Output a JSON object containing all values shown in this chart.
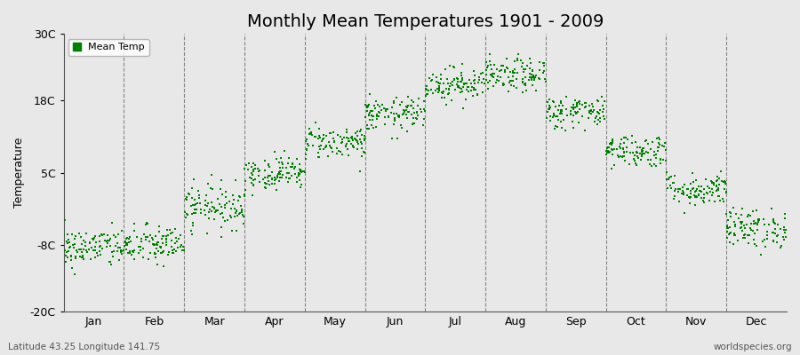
{
  "title": "Monthly Mean Temperatures 1901 - 2009",
  "ylabel": "Temperature",
  "xlabel_left": "Latitude 43.25 Longitude 141.75",
  "xlabel_right": "worldspecies.org",
  "ylim": [
    -20,
    30
  ],
  "yticks": [
    -20,
    -8,
    5,
    18,
    30
  ],
  "ytick_labels": [
    "-20C",
    "-8C",
    "5C",
    "18C",
    "30C"
  ],
  "months": [
    "Jan",
    "Feb",
    "Mar",
    "Apr",
    "May",
    "Jun",
    "Jul",
    "Aug",
    "Sep",
    "Oct",
    "Nov",
    "Dec"
  ],
  "month_means": [
    -8.5,
    -8.0,
    -1.0,
    5.0,
    10.5,
    15.5,
    21.0,
    22.5,
    16.0,
    9.0,
    2.0,
    -5.0
  ],
  "month_stds": [
    1.8,
    1.8,
    2.0,
    1.5,
    1.5,
    1.5,
    1.5,
    1.5,
    1.5,
    1.5,
    1.5,
    1.8
  ],
  "n_years": 109,
  "dot_color": "#008000",
  "dot_size": 3,
  "background_color": "#E8E8E8",
  "plot_bg_color": "#E8E8E8",
  "grid_color": "#666666",
  "title_fontsize": 14,
  "axis_label_fontsize": 9,
  "tick_fontsize": 9,
  "legend_label": "Mean Temp"
}
